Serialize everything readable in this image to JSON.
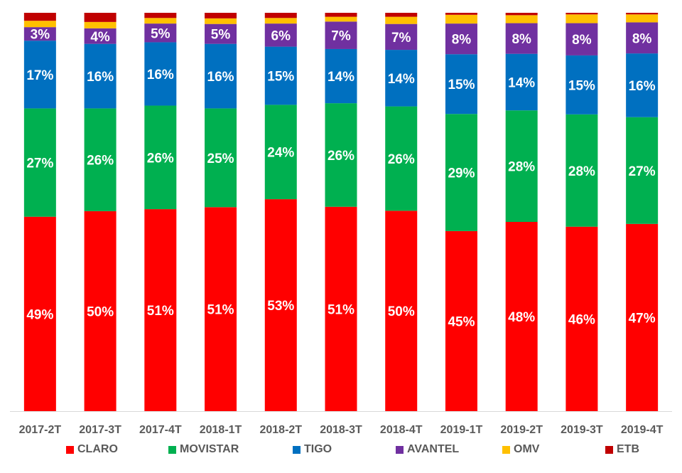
{
  "chart_data": {
    "type": "bar",
    "stacked": true,
    "normalized_percent": true,
    "title": "",
    "xlabel": "",
    "ylabel": "",
    "ylim": [
      0,
      100
    ],
    "grid": false,
    "legend_position": "bottom",
    "categories": [
      "2017-2T",
      "2017-3T",
      "2017-4T",
      "2018-1T",
      "2018-2T",
      "2018-3T",
      "2018-4T",
      "2019-1T",
      "2019-2T",
      "2019-3T",
      "2019-4T"
    ],
    "series": [
      {
        "name": "CLARO",
        "color": "#FF0000",
        "values": [
          48.8,
          50.2,
          50.7,
          51.2,
          53.2,
          51.3,
          50.3,
          45.2,
          47.5,
          46.3,
          47.0
        ],
        "labels": [
          "49%",
          "50%",
          "51%",
          "51%",
          "53%",
          "51%",
          "50%",
          "45%",
          "48%",
          "46%",
          "47%"
        ]
      },
      {
        "name": "MOVISTAR",
        "color": "#00B050",
        "values": [
          27.2,
          25.8,
          26.0,
          24.8,
          23.7,
          26.0,
          26.2,
          29.4,
          28.0,
          28.2,
          26.8
        ],
        "labels": [
          "27%",
          "26%",
          "26%",
          "25%",
          "24%",
          "26%",
          "26%",
          "29%",
          "28%",
          "28%",
          "27%"
        ]
      },
      {
        "name": "TIGO",
        "color": "#0070C0",
        "values": [
          17.0,
          16.2,
          15.9,
          16.2,
          14.6,
          13.6,
          14.2,
          15.0,
          14.2,
          14.8,
          16.0
        ],
        "labels": [
          "17%",
          "16%",
          "16%",
          "16%",
          "15%",
          "14%",
          "14%",
          "15%",
          "14%",
          "15%",
          "16%"
        ]
      },
      {
        "name": "AVANTEL",
        "color": "#7030A0",
        "values": [
          3.4,
          3.9,
          4.7,
          5.0,
          5.8,
          6.9,
          6.5,
          7.7,
          7.7,
          8.1,
          7.8
        ],
        "labels": [
          "3%",
          "4%",
          "5%",
          "5%",
          "6%",
          "7%",
          "7%",
          "8%",
          "8%",
          "8%",
          "8%"
        ]
      },
      {
        "name": "OMV",
        "color": "#FFC000",
        "values": [
          1.6,
          1.6,
          1.4,
          1.4,
          1.4,
          1.2,
          1.8,
          2.2,
          2.0,
          2.2,
          2.0
        ]
      },
      {
        "name": "ETB",
        "color": "#C00000",
        "values": [
          2.0,
          2.3,
          1.3,
          1.4,
          1.3,
          1.0,
          1.0,
          0.5,
          0.6,
          0.4,
          0.4
        ]
      }
    ]
  }
}
